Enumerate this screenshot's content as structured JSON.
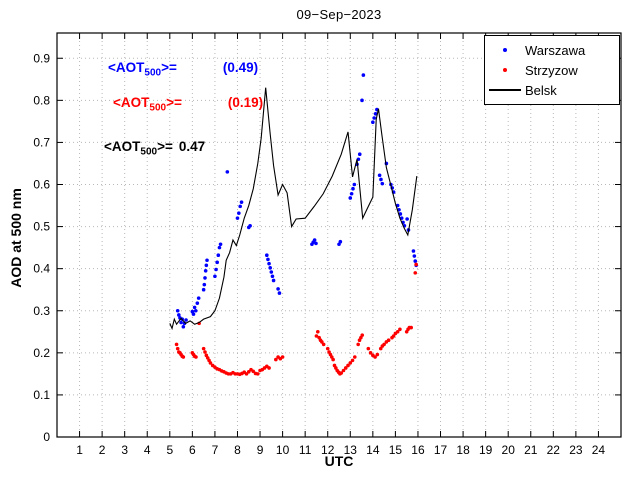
{
  "annotations": [
    {
      "prefix": "<AOT",
      "sub": "500",
      "eq": ">=",
      "value": "(0.49)",
      "color": "#0000ff"
    },
    {
      "prefix": "<AOT",
      "sub": "500",
      "eq": ">=",
      "value": "(0.19)",
      "color": "#ff0000"
    },
    {
      "prefix": "<AOT",
      "sub": "500",
      "eq": ">=",
      "value": "0.47",
      "color": "#000000"
    }
  ],
  "legend": {
    "items": [
      {
        "label": "Warszawa",
        "color": "#0000ff",
        "marker": "dot"
      },
      {
        "label": "Strzyzow",
        "color": "#ff0000",
        "marker": "dot"
      },
      {
        "label": "Belsk",
        "color": "#000000",
        "marker": "line"
      }
    ]
  },
  "chart_data": {
    "type": "scatter",
    "title": "09−Sep−2023",
    "xlabel": "UTC",
    "ylabel": "AOD at 500 nm",
    "xlim": [
      0,
      25
    ],
    "ylim": [
      0,
      0.96
    ],
    "xticks": [
      1,
      2,
      3,
      4,
      5,
      6,
      7,
      8,
      9,
      10,
      11,
      12,
      13,
      14,
      15,
      16,
      17,
      18,
      19,
      20,
      21,
      22,
      23,
      24
    ],
    "yticks": [
      0,
      0.1,
      0.2,
      0.3,
      0.4,
      0.5,
      0.6,
      0.7,
      0.8,
      0.9
    ],
    "grid": true,
    "legend_position": "top-right",
    "series": [
      {
        "name": "Warszawa",
        "type": "scatter",
        "color": "#0000ff",
        "points": [
          [
            5.35,
            0.3
          ],
          [
            5.4,
            0.29
          ],
          [
            5.45,
            0.283
          ],
          [
            5.5,
            0.272
          ],
          [
            5.55,
            0.28
          ],
          [
            5.6,
            0.262
          ],
          [
            5.65,
            0.27
          ],
          [
            5.72,
            0.278
          ],
          [
            6.0,
            0.298
          ],
          [
            6.05,
            0.292
          ],
          [
            6.1,
            0.308
          ],
          [
            6.15,
            0.3
          ],
          [
            6.22,
            0.318
          ],
          [
            6.28,
            0.33
          ],
          [
            6.5,
            0.35
          ],
          [
            6.53,
            0.362
          ],
          [
            6.56,
            0.378
          ],
          [
            6.59,
            0.395
          ],
          [
            6.62,
            0.408
          ],
          [
            6.65,
            0.42
          ],
          [
            7.0,
            0.382
          ],
          [
            7.05,
            0.398
          ],
          [
            7.1,
            0.415
          ],
          [
            7.15,
            0.432
          ],
          [
            7.2,
            0.45
          ],
          [
            7.25,
            0.458
          ],
          [
            7.55,
            0.63
          ],
          [
            8.0,
            0.52
          ],
          [
            8.06,
            0.532
          ],
          [
            8.12,
            0.548
          ],
          [
            8.18,
            0.558
          ],
          [
            8.5,
            0.498
          ],
          [
            8.56,
            0.502
          ],
          [
            9.3,
            0.432
          ],
          [
            9.35,
            0.422
          ],
          [
            9.4,
            0.412
          ],
          [
            9.45,
            0.402
          ],
          [
            9.5,
            0.392
          ],
          [
            9.55,
            0.382
          ],
          [
            9.6,
            0.372
          ],
          [
            9.8,
            0.352
          ],
          [
            9.86,
            0.342
          ],
          [
            11.3,
            0.458
          ],
          [
            11.36,
            0.463
          ],
          [
            11.42,
            0.468
          ],
          [
            11.48,
            0.46
          ],
          [
            12.5,
            0.458
          ],
          [
            12.56,
            0.464
          ],
          [
            13.0,
            0.568
          ],
          [
            13.06,
            0.578
          ],
          [
            13.12,
            0.59
          ],
          [
            13.18,
            0.6
          ],
          [
            13.3,
            0.648
          ],
          [
            13.36,
            0.66
          ],
          [
            13.42,
            0.672
          ],
          [
            13.52,
            0.8
          ],
          [
            13.58,
            0.86
          ],
          [
            14.0,
            0.748
          ],
          [
            14.06,
            0.758
          ],
          [
            14.12,
            0.768
          ],
          [
            14.18,
            0.778
          ],
          [
            14.3,
            0.622
          ],
          [
            14.36,
            0.612
          ],
          [
            14.42,
            0.602
          ],
          [
            14.6,
            0.65
          ],
          [
            14.8,
            0.6
          ],
          [
            14.86,
            0.592
          ],
          [
            14.92,
            0.582
          ],
          [
            15.1,
            0.55
          ],
          [
            15.16,
            0.54
          ],
          [
            15.22,
            0.53
          ],
          [
            15.28,
            0.52
          ],
          [
            15.34,
            0.51
          ],
          [
            15.4,
            0.502
          ],
          [
            15.52,
            0.518
          ],
          [
            15.58,
            0.492
          ],
          [
            15.8,
            0.442
          ],
          [
            15.84,
            0.43
          ],
          [
            15.88,
            0.418
          ],
          [
            15.92,
            0.408
          ]
        ]
      },
      {
        "name": "Strzyzow",
        "type": "scatter",
        "color": "#ff0000",
        "points": [
          [
            5.3,
            0.22
          ],
          [
            5.35,
            0.21
          ],
          [
            5.4,
            0.202
          ],
          [
            5.45,
            0.2
          ],
          [
            5.5,
            0.196
          ],
          [
            5.55,
            0.192
          ],
          [
            5.6,
            0.19
          ],
          [
            6.0,
            0.2
          ],
          [
            6.05,
            0.196
          ],
          [
            6.1,
            0.192
          ],
          [
            6.16,
            0.19
          ],
          [
            6.3,
            0.27
          ],
          [
            6.5,
            0.21
          ],
          [
            6.56,
            0.202
          ],
          [
            6.62,
            0.194
          ],
          [
            6.68,
            0.188
          ],
          [
            6.74,
            0.182
          ],
          [
            6.8,
            0.176
          ],
          [
            6.9,
            0.17
          ],
          [
            7.0,
            0.166
          ],
          [
            7.1,
            0.162
          ],
          [
            7.2,
            0.16
          ],
          [
            7.3,
            0.157
          ],
          [
            7.4,
            0.155
          ],
          [
            7.5,
            0.152
          ],
          [
            7.6,
            0.15
          ],
          [
            7.7,
            0.15
          ],
          [
            7.8,
            0.153
          ],
          [
            7.9,
            0.15
          ],
          [
            8.0,
            0.15
          ],
          [
            8.1,
            0.149
          ],
          [
            8.2,
            0.151
          ],
          [
            8.3,
            0.154
          ],
          [
            8.4,
            0.15
          ],
          [
            8.5,
            0.155
          ],
          [
            8.6,
            0.16
          ],
          [
            8.7,
            0.156
          ],
          [
            8.8,
            0.151
          ],
          [
            8.9,
            0.15
          ],
          [
            9.0,
            0.158
          ],
          [
            9.1,
            0.16
          ],
          [
            9.2,
            0.164
          ],
          [
            9.3,
            0.168
          ],
          [
            9.4,
            0.164
          ],
          [
            9.7,
            0.184
          ],
          [
            9.8,
            0.19
          ],
          [
            9.9,
            0.186
          ],
          [
            10.0,
            0.19
          ],
          [
            11.5,
            0.24
          ],
          [
            11.56,
            0.25
          ],
          [
            11.62,
            0.236
          ],
          [
            11.68,
            0.23
          ],
          [
            11.74,
            0.226
          ],
          [
            11.82,
            0.22
          ],
          [
            12.0,
            0.21
          ],
          [
            12.06,
            0.202
          ],
          [
            12.12,
            0.196
          ],
          [
            12.18,
            0.19
          ],
          [
            12.24,
            0.184
          ],
          [
            12.3,
            0.17
          ],
          [
            12.36,
            0.164
          ],
          [
            12.42,
            0.158
          ],
          [
            12.48,
            0.154
          ],
          [
            12.54,
            0.15
          ],
          [
            12.6,
            0.152
          ],
          [
            12.7,
            0.158
          ],
          [
            12.8,
            0.164
          ],
          [
            12.9,
            0.17
          ],
          [
            13.0,
            0.176
          ],
          [
            13.1,
            0.182
          ],
          [
            13.2,
            0.19
          ],
          [
            13.35,
            0.22
          ],
          [
            13.41,
            0.23
          ],
          [
            13.47,
            0.236
          ],
          [
            13.53,
            0.242
          ],
          [
            13.8,
            0.21
          ],
          [
            13.9,
            0.2
          ],
          [
            14.0,
            0.194
          ],
          [
            14.1,
            0.19
          ],
          [
            14.2,
            0.196
          ],
          [
            14.35,
            0.21
          ],
          [
            14.42,
            0.216
          ],
          [
            14.5,
            0.22
          ],
          [
            14.6,
            0.226
          ],
          [
            14.7,
            0.23
          ],
          [
            14.85,
            0.236
          ],
          [
            14.92,
            0.24
          ],
          [
            15.0,
            0.246
          ],
          [
            15.1,
            0.25
          ],
          [
            15.2,
            0.256
          ],
          [
            15.5,
            0.25
          ],
          [
            15.56,
            0.256
          ],
          [
            15.62,
            0.26
          ],
          [
            15.7,
            0.26
          ],
          [
            15.88,
            0.39
          ],
          [
            15.92,
            0.41
          ]
        ]
      },
      {
        "name": "Belsk",
        "type": "line",
        "color": "#000000",
        "points": [
          [
            5.0,
            0.27
          ],
          [
            5.1,
            0.258
          ],
          [
            5.2,
            0.28
          ],
          [
            5.3,
            0.268
          ],
          [
            5.5,
            0.282
          ],
          [
            5.7,
            0.27
          ],
          [
            5.9,
            0.276
          ],
          [
            6.1,
            0.268
          ],
          [
            6.3,
            0.272
          ],
          [
            6.5,
            0.28
          ],
          [
            6.8,
            0.286
          ],
          [
            7.0,
            0.3
          ],
          [
            7.2,
            0.33
          ],
          [
            7.4,
            0.38
          ],
          [
            7.5,
            0.42
          ],
          [
            7.65,
            0.438
          ],
          [
            7.8,
            0.468
          ],
          [
            7.95,
            0.455
          ],
          [
            8.1,
            0.48
          ],
          [
            8.3,
            0.52
          ],
          [
            8.5,
            0.55
          ],
          [
            8.7,
            0.59
          ],
          [
            8.9,
            0.65
          ],
          [
            9.05,
            0.71
          ],
          [
            9.25,
            0.83
          ],
          [
            9.45,
            0.72
          ],
          [
            9.6,
            0.645
          ],
          [
            9.8,
            0.575
          ],
          [
            10.0,
            0.6
          ],
          [
            10.2,
            0.58
          ],
          [
            10.4,
            0.5
          ],
          [
            10.6,
            0.518
          ],
          [
            11.0,
            0.52
          ],
          [
            11.4,
            0.548
          ],
          [
            11.8,
            0.578
          ],
          [
            12.2,
            0.62
          ],
          [
            12.6,
            0.672
          ],
          [
            12.9,
            0.725
          ],
          [
            13.1,
            0.618
          ],
          [
            13.3,
            0.66
          ],
          [
            13.55,
            0.52
          ],
          [
            13.8,
            0.548
          ],
          [
            14.0,
            0.57
          ],
          [
            14.15,
            0.755
          ],
          [
            14.25,
            0.78
          ],
          [
            14.4,
            0.718
          ],
          [
            14.6,
            0.64
          ],
          [
            14.8,
            0.598
          ],
          [
            15.0,
            0.555
          ],
          [
            15.2,
            0.52
          ],
          [
            15.4,
            0.495
          ],
          [
            15.55,
            0.48
          ],
          [
            15.75,
            0.54
          ],
          [
            15.95,
            0.62
          ]
        ]
      }
    ]
  }
}
